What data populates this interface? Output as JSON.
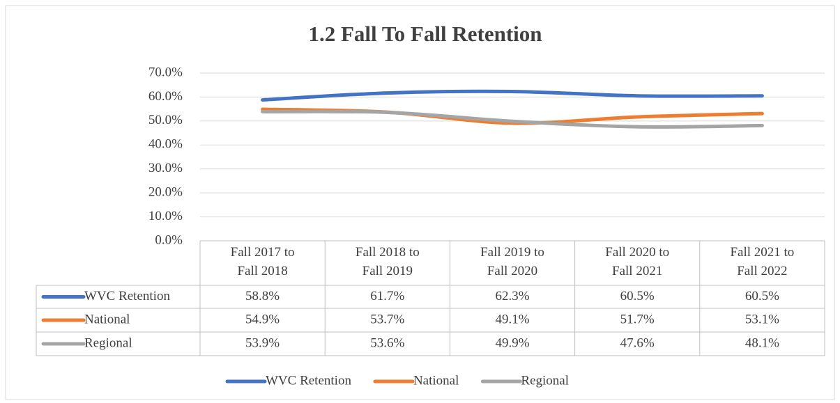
{
  "chart_data": {
    "type": "line",
    "title": "1.2 Fall To Fall Retention",
    "categories": [
      "Fall 2017 to Fall 2018",
      "Fall 2018 to Fall 2019",
      "Fall 2019 to Fall 2020",
      "Fall 2020 to Fall 2021",
      "Fall 2021 to Fall 2022"
    ],
    "series": [
      {
        "name": "WVC Retention",
        "color": "#4472c4",
        "values": [
          58.8,
          61.7,
          62.3,
          60.5,
          60.5
        ],
        "value_labels": [
          "58.8%",
          "61.7%",
          "62.3%",
          "60.5%",
          "60.5%"
        ]
      },
      {
        "name": "National",
        "color": "#ed7d31",
        "values": [
          54.9,
          53.7,
          49.1,
          51.7,
          53.1
        ],
        "value_labels": [
          "54.9%",
          "53.7%",
          "49.1%",
          "51.7%",
          "53.1%"
        ]
      },
      {
        "name": "Regional",
        "color": "#a5a5a5",
        "values": [
          53.9,
          53.6,
          49.9,
          47.6,
          48.1
        ],
        "value_labels": [
          "53.9%",
          "53.6%",
          "49.9%",
          "47.6%",
          "48.1%"
        ]
      }
    ],
    "ylim": [
      0,
      70
    ],
    "yticks": [
      {
        "value": 0,
        "label": "0.0%"
      },
      {
        "value": 10,
        "label": "10.0%"
      },
      {
        "value": 20,
        "label": "20.0%"
      },
      {
        "value": 30,
        "label": "30.0%"
      },
      {
        "value": 40,
        "label": "40.0%"
      },
      {
        "value": 50,
        "label": "50.0%"
      },
      {
        "value": 60,
        "label": "60.0%"
      },
      {
        "value": 70,
        "label": "70.0%"
      }
    ],
    "grid": true,
    "legend": "bottom"
  }
}
